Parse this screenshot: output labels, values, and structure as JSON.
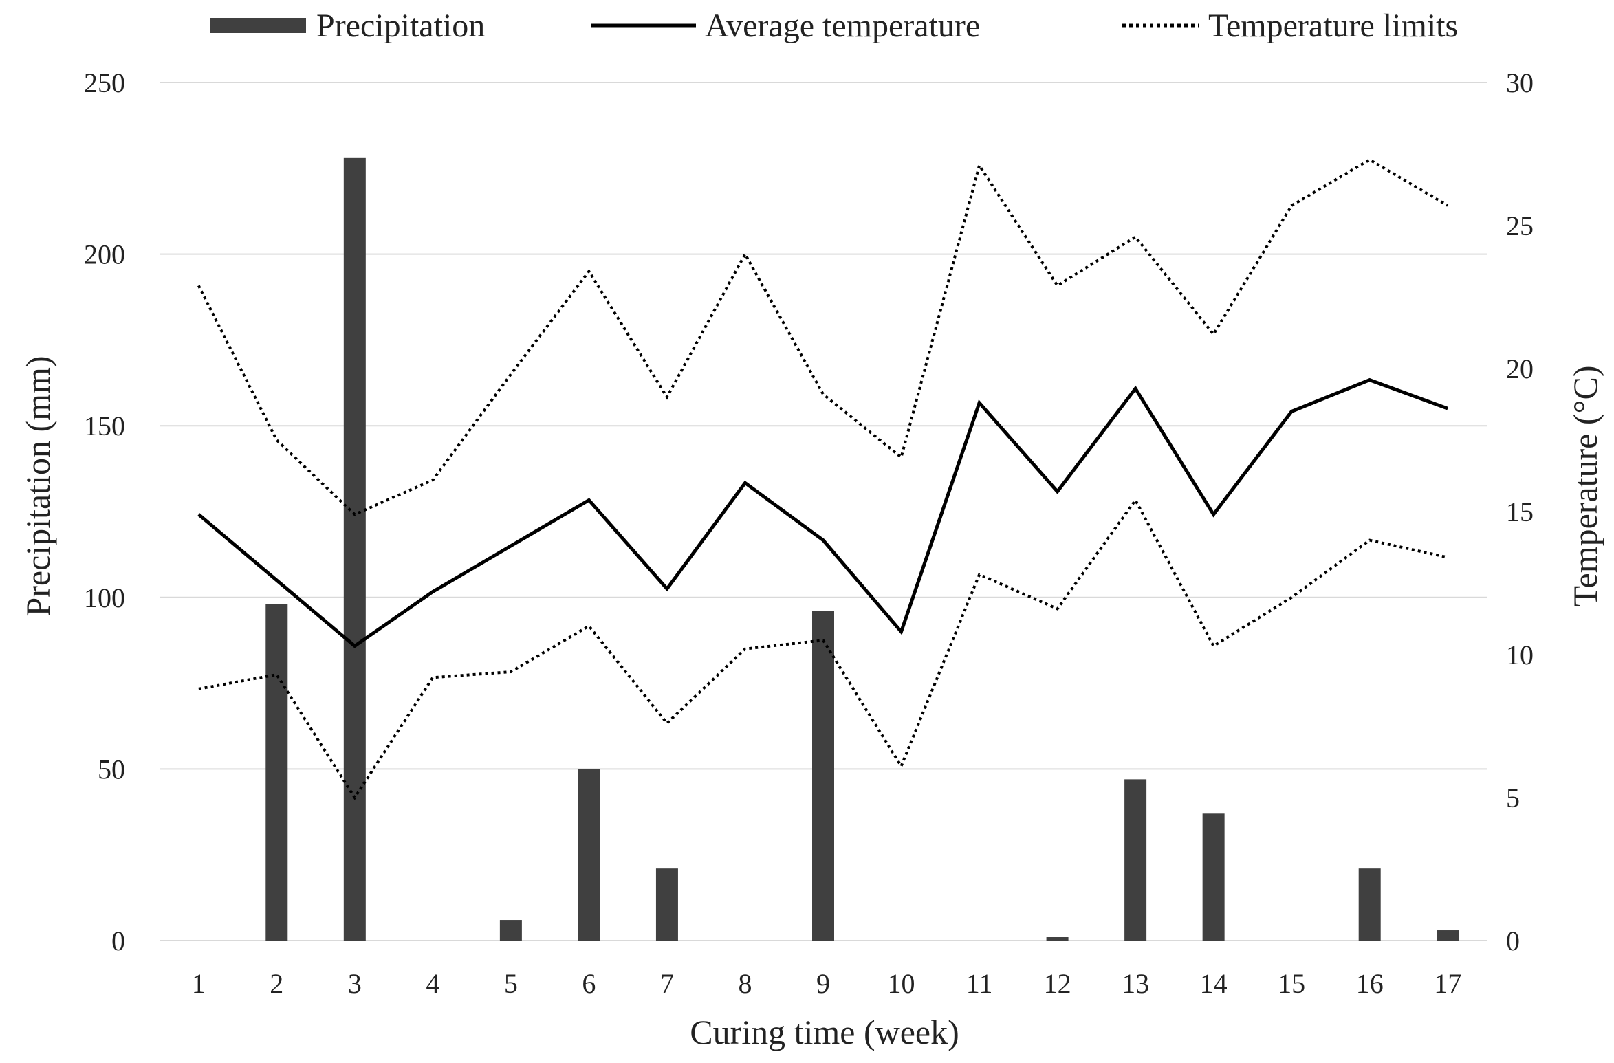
{
  "chart_data": {
    "type": "bar+line",
    "xlabel": "Curing time (week)",
    "ylabel_left": "Precipitation (mm)",
    "ylabel_right": "Temperature (°C)",
    "ylim_left": [
      0,
      250
    ],
    "ylim_right": [
      0,
      30
    ],
    "yticks_left": [
      0,
      50,
      100,
      150,
      200,
      250
    ],
    "yticks_right": [
      0,
      5,
      10,
      15,
      20,
      25,
      30
    ],
    "grid": true,
    "legend_position": "top",
    "categories": [
      "1",
      "2",
      "3",
      "4",
      "5",
      "6",
      "7",
      "8",
      "9",
      "10",
      "11",
      "12",
      "13",
      "14",
      "15",
      "16",
      "17"
    ],
    "series": [
      {
        "name": "Precipitation",
        "type": "bar",
        "axis": "left",
        "color": "#404040",
        "values": [
          0,
          98,
          228,
          0,
          6,
          50,
          21,
          0,
          96,
          0,
          0,
          1,
          47,
          37,
          0,
          21,
          3
        ]
      },
      {
        "name": "Average temperature",
        "type": "line",
        "style": "solid",
        "axis": "right",
        "color": "#000000",
        "values": [
          14.9,
          12.6,
          10.3,
          12.2,
          13.8,
          15.4,
          12.3,
          16.0,
          14.0,
          10.8,
          18.8,
          15.7,
          19.3,
          14.9,
          18.5,
          19.6,
          18.6
        ]
      },
      {
        "name": "Temperature limits",
        "subname": "upper",
        "type": "line",
        "style": "dotted",
        "axis": "right",
        "color": "#000000",
        "values": [
          22.9,
          17.5,
          14.9,
          16.1,
          19.8,
          23.4,
          19.0,
          24.0,
          19.1,
          16.9,
          27.1,
          22.9,
          24.6,
          21.2,
          25.7,
          27.3,
          25.7
        ]
      },
      {
        "name": "Temperature limits",
        "subname": "lower",
        "type": "line",
        "style": "dotted",
        "axis": "right",
        "color": "#000000",
        "values": [
          8.8,
          9.3,
          5.0,
          9.2,
          9.4,
          11.0,
          7.6,
          10.2,
          10.5,
          6.1,
          12.8,
          11.6,
          15.4,
          10.3,
          12.0,
          14.0,
          13.4
        ]
      }
    ],
    "legend": [
      {
        "label": "Precipitation",
        "style": "bar"
      },
      {
        "label": "Average temperature",
        "style": "solid"
      },
      {
        "label": "Temperature limits",
        "style": "dotted"
      }
    ]
  }
}
